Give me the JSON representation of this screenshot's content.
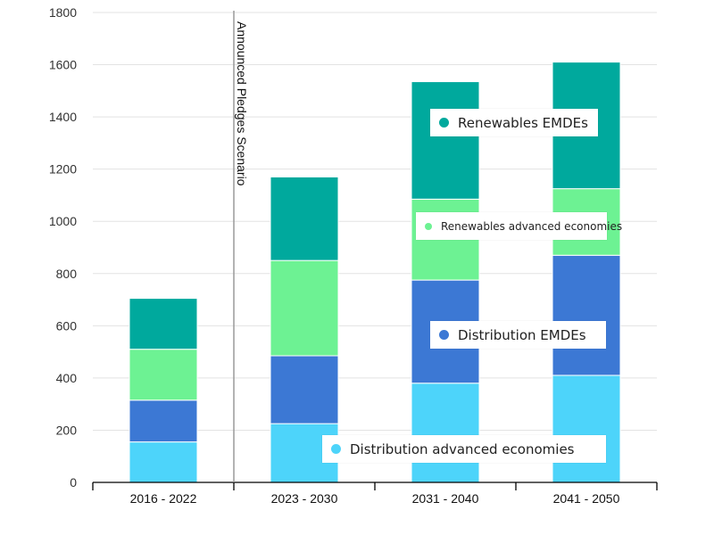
{
  "chart_data": {
    "type": "bar",
    "stacked": true,
    "categories": [
      "2016 - 2022",
      "2023 - 2030",
      "2031 - 2040",
      "2041 - 2050"
    ],
    "series": [
      {
        "name": "Distribution advanced economies",
        "color": "#4dd4fa",
        "values": [
          155,
          225,
          380,
          410
        ]
      },
      {
        "name": "Distribution EMDEs",
        "color": "#3c78d4",
        "values": [
          160,
          260,
          395,
          460
        ]
      },
      {
        "name": "Renewables advanced economies",
        "color": "#6df293",
        "values": [
          195,
          365,
          310,
          255
        ]
      },
      {
        "name": "Renewables EMDEs",
        "color": "#00a99d",
        "values": [
          195,
          320,
          450,
          485
        ]
      }
    ],
    "ylim": [
      0,
      1800
    ],
    "yticks": [
      0,
      200,
      400,
      600,
      800,
      1000,
      1200,
      1400,
      1600,
      1800
    ],
    "grid": true,
    "annotation": "Announced Pledges Scenario",
    "title": "",
    "xlabel": "",
    "ylabel": ""
  }
}
